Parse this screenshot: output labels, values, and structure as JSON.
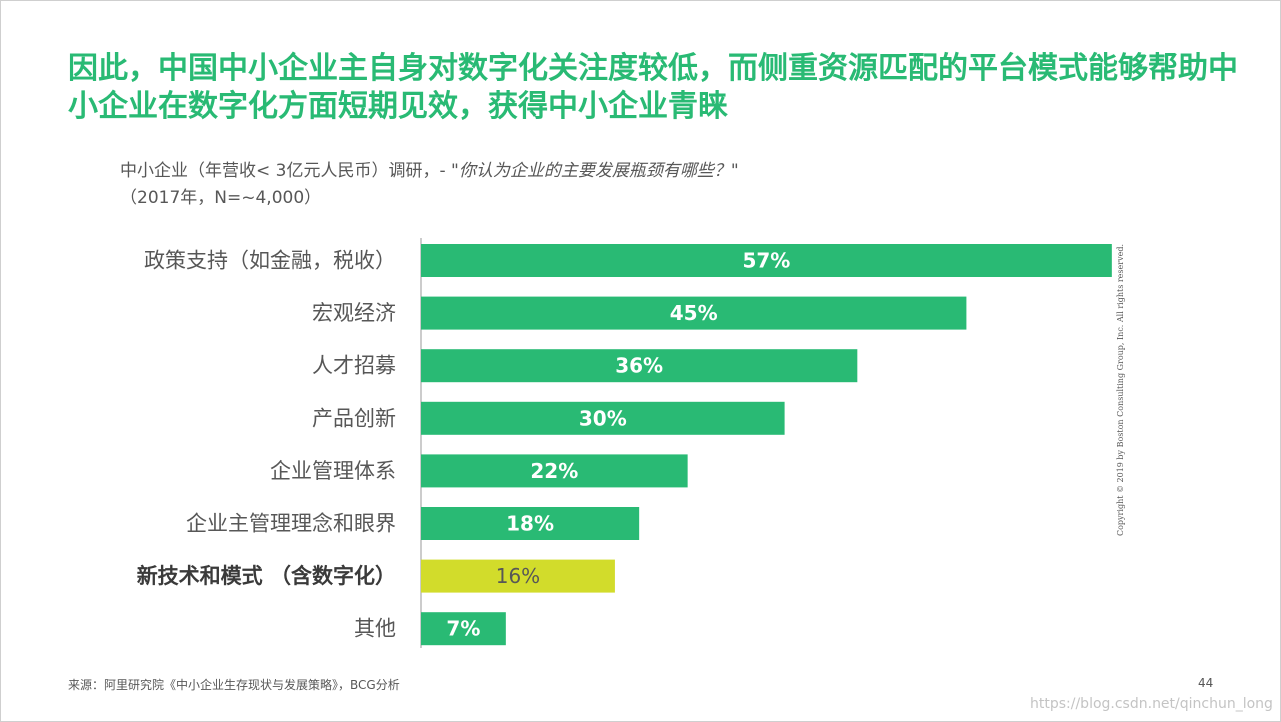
{
  "title": "因此，中国中小企业主自身对数字化关注度较低，而侧重资源匹配的平台模式能够帮助中小企业在数字化方面短期见效，获得中小企业青睐",
  "subtitle": {
    "line1_prefix": "中小企业（年营收< 3亿元人民币）调研，- ",
    "question": "\"你认为企业的主要发展瓶颈有哪些？\"",
    "line2": "（2017年，N=~4,000）"
  },
  "colors": {
    "title": "#29ba74",
    "bar": "#29ba74",
    "bar_highlight": "#d2dc2b",
    "text": "#575757"
  },
  "chart_data": {
    "type": "bar",
    "orientation": "horizontal",
    "categories": [
      "政策支持（如金融，税收）",
      "宏观经济",
      "人才招募",
      "产品创新",
      "企业管理体系",
      "企业主管理理念和眼界",
      "新技术和模式 （含数字化）",
      "其他"
    ],
    "values": [
      57,
      45,
      36,
      30,
      22,
      18,
      16,
      7
    ],
    "value_labels": [
      "57%",
      "45%",
      "36%",
      "30%",
      "22%",
      "18%",
      "16%",
      "7%"
    ],
    "highlight_index": 6,
    "unit": "%",
    "xlim": [
      0,
      100
    ],
    "grid": false,
    "legend": false
  },
  "source": "来源：阿里研究院《中小企业生存现状与发展策略》，BCG分析",
  "page_number": "44",
  "copyright": "Copyright © 2019 by Boston Consulting Group, Inc. All rights reserved.",
  "watermark": "https://blog.csdn.net/qinchun_long"
}
